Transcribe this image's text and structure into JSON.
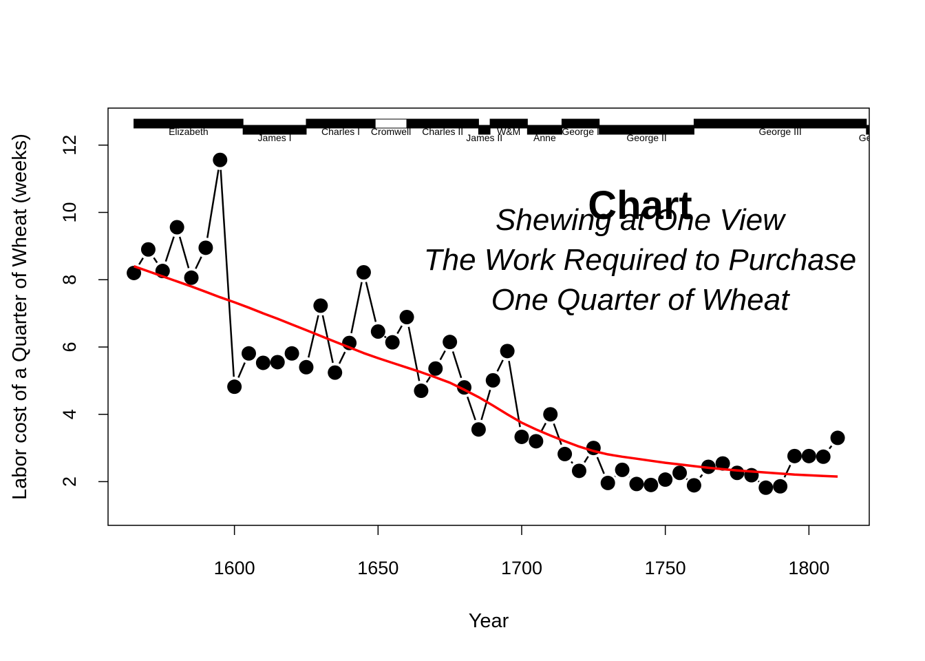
{
  "chart_data": {
    "type": "line",
    "title": "Chart",
    "subtitle": [
      "Shewing at One View",
      "The Work Required to Purchase",
      "One Quarter of Wheat"
    ],
    "xlabel": "Year",
    "ylabel": "Labor cost of a Quarter of Wheat (weeks)",
    "xlim": [
      1556,
      1821
    ],
    "ylim": [
      0.7,
      13.1
    ],
    "xticks": [
      1600,
      1650,
      1700,
      1750,
      1800
    ],
    "yticks": [
      2,
      4,
      6,
      8,
      10,
      12
    ],
    "grid": false,
    "series": [
      {
        "style": "line-with-points",
        "color": "#000000",
        "x": [
          1565,
          1570,
          1575,
          1580,
          1585,
          1590,
          1595,
          1600,
          1605,
          1610,
          1615,
          1620,
          1625,
          1630,
          1635,
          1640,
          1645,
          1650,
          1655,
          1660,
          1665,
          1670,
          1675,
          1680,
          1685,
          1690,
          1695,
          1700,
          1705,
          1710,
          1715,
          1720,
          1725,
          1730,
          1735,
          1740,
          1745,
          1750,
          1755,
          1760,
          1765,
          1770,
          1775,
          1780,
          1785,
          1790,
          1795,
          1800,
          1805,
          1810
        ],
        "values": [
          8.2,
          8.9,
          8.26,
          9.56,
          8.06,
          8.95,
          11.56,
          4.82,
          5.81,
          5.53,
          5.55,
          5.81,
          5.4,
          7.23,
          5.24,
          6.12,
          8.22,
          6.46,
          6.14,
          6.89,
          4.7,
          5.36,
          6.15,
          4.8,
          3.55,
          5.01,
          5.88,
          3.33,
          3.2,
          4.0,
          2.82,
          2.32,
          3.0,
          1.96,
          2.35,
          1.93,
          1.9,
          2.06,
          2.26,
          1.89,
          2.44,
          2.54,
          2.26,
          2.19,
          1.82,
          1.86,
          2.76,
          2.76,
          2.74,
          3.3
        ]
      },
      {
        "style": "smooth-line",
        "color": "#ff0000",
        "x": [
          1565,
          1570,
          1575,
          1580,
          1585,
          1590,
          1595,
          1600,
          1605,
          1610,
          1615,
          1620,
          1625,
          1630,
          1635,
          1640,
          1645,
          1650,
          1655,
          1660,
          1665,
          1670,
          1675,
          1680,
          1685,
          1690,
          1695,
          1700,
          1705,
          1710,
          1715,
          1720,
          1725,
          1730,
          1735,
          1740,
          1745,
          1750,
          1755,
          1760,
          1765,
          1770,
          1775,
          1780,
          1785,
          1790,
          1795,
          1800,
          1805,
          1810
        ],
        "values": [
          8.4,
          8.25,
          8.1,
          7.95,
          7.8,
          7.64,
          7.48,
          7.33,
          7.17,
          7.0,
          6.84,
          6.67,
          6.5,
          6.33,
          6.16,
          5.99,
          5.82,
          5.67,
          5.53,
          5.39,
          5.25,
          5.1,
          4.94,
          4.73,
          4.51,
          4.26,
          4.0,
          3.75,
          3.55,
          3.37,
          3.2,
          3.04,
          2.91,
          2.81,
          2.74,
          2.68,
          2.62,
          2.56,
          2.51,
          2.46,
          2.41,
          2.37,
          2.33,
          2.3,
          2.27,
          2.24,
          2.21,
          2.19,
          2.17,
          2.15
        ]
      }
    ],
    "reigns": [
      {
        "name": "Elizabeth",
        "start": 1565,
        "end": 1603,
        "level": "upper",
        "fill": "#000000"
      },
      {
        "name": "James I",
        "start": 1603,
        "end": 1625,
        "level": "lower",
        "fill": "#000000"
      },
      {
        "name": "Charles I",
        "start": 1625,
        "end": 1649,
        "level": "upper",
        "fill": "#000000"
      },
      {
        "name": "Cromwell",
        "start": 1649,
        "end": 1660,
        "level": "upper",
        "fill": "#ffffff"
      },
      {
        "name": "Charles II",
        "start": 1660,
        "end": 1685,
        "level": "upper",
        "fill": "#000000"
      },
      {
        "name": "James II",
        "start": 1685,
        "end": 1689,
        "level": "lower",
        "fill": "#000000"
      },
      {
        "name": "W&M",
        "start": 1689,
        "end": 1702,
        "level": "upper",
        "fill": "#000000"
      },
      {
        "name": "Anne",
        "start": 1702,
        "end": 1714,
        "level": "lower",
        "fill": "#000000"
      },
      {
        "name": "George I",
        "start": 1714,
        "end": 1727,
        "level": "upper",
        "fill": "#000000"
      },
      {
        "name": "George II",
        "start": 1727,
        "end": 1760,
        "level": "lower",
        "fill": "#000000"
      },
      {
        "name": "George III",
        "start": 1760,
        "end": 1820,
        "level": "upper",
        "fill": "#000000"
      },
      {
        "name": "George IV",
        "start": 1820,
        "end": 1830,
        "level": "lower",
        "fill": "#000000"
      }
    ]
  }
}
